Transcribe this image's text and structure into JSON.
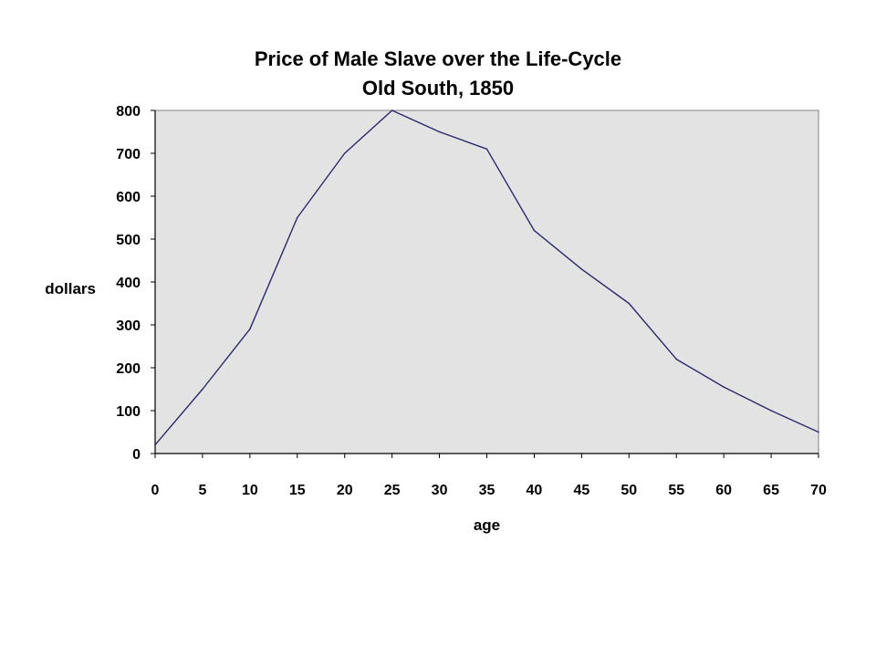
{
  "chart_data": {
    "type": "line",
    "title": "Price of Male Slave over the Life-Cycle",
    "subtitle": "Old South, 1850",
    "xlabel": "age",
    "ylabel": "dollars",
    "xlim": [
      0,
      70
    ],
    "ylim": [
      0,
      800
    ],
    "x_ticks": [
      0,
      5,
      10,
      15,
      20,
      25,
      30,
      35,
      40,
      45,
      50,
      55,
      60,
      65,
      70
    ],
    "y_ticks": [
      0,
      100,
      200,
      300,
      400,
      500,
      600,
      700,
      800
    ],
    "grid": false,
    "legend": "none",
    "plot_background": "#e3e3e3",
    "line_color": "#2a2a6e",
    "series": [
      {
        "x": [
          0,
          5,
          10,
          15,
          20,
          25,
          30,
          35,
          40,
          45,
          50,
          55,
          60,
          65,
          70
        ],
        "values": [
          20,
          150,
          290,
          550,
          700,
          800,
          750,
          710,
          520,
          430,
          350,
          220,
          155,
          100,
          50
        ]
      }
    ]
  }
}
